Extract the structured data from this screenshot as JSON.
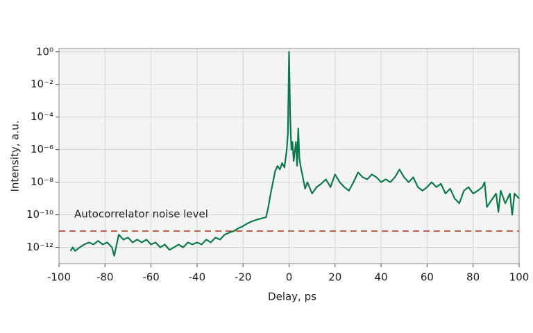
{
  "chart_data": {
    "type": "line",
    "xlabel": "Delay, ps",
    "ylabel": "Intensity, a.u.",
    "x": [
      -95,
      -94,
      -93,
      -91,
      -89,
      -87,
      -85,
      -83,
      -81,
      -79,
      -77,
      -76,
      -74,
      -72,
      -70,
      -68,
      -66,
      -64,
      -62,
      -60,
      -58,
      -56,
      -54,
      -52,
      -50,
      -48,
      -46,
      -44,
      -42,
      -40,
      -38,
      -36,
      -34,
      -32,
      -30,
      -28,
      -26,
      -24,
      -22,
      -20,
      -18,
      -16,
      -14,
      -12,
      -10,
      -9,
      -8,
      -7,
      -6,
      -5,
      -4,
      -3,
      -2,
      -1,
      -0.5,
      0,
      0.5,
      1,
      1.5,
      2,
      3,
      3.5,
      4,
      4.5,
      5,
      6,
      7,
      8,
      10,
      12,
      14,
      16,
      18,
      20,
      22,
      24,
      26,
      28,
      30,
      32,
      34,
      36,
      38,
      40,
      42,
      44,
      46,
      48,
      50,
      52,
      54,
      56,
      58,
      60,
      62,
      64,
      66,
      68,
      70,
      72,
      74,
      76,
      78,
      80,
      82,
      84,
      85,
      86,
      88,
      90,
      91,
      92,
      94,
      96,
      97,
      98,
      100
    ],
    "values": [
      6e-13,
      1e-12,
      6e-13,
      1e-12,
      1.5e-12,
      2e-12,
      1.5e-12,
      2.5e-12,
      1.5e-12,
      2e-12,
      1e-12,
      3e-13,
      6e-12,
      3e-12,
      4e-12,
      2e-12,
      3e-12,
      2e-12,
      3e-12,
      1.5e-12,
      2e-12,
      1e-12,
      1.5e-12,
      7e-13,
      1e-12,
      1.5e-12,
      1e-12,
      2e-12,
      1.5e-12,
      2e-12,
      1.5e-12,
      3e-12,
      2e-12,
      4e-12,
      3e-12,
      6e-12,
      8e-12,
      1e-11,
      1.5e-11,
      2e-11,
      3e-11,
      4e-11,
      5e-11,
      6e-11,
      7e-11,
      3e-10,
      2e-09,
      1e-08,
      5e-08,
      1e-07,
      6e-08,
      1.5e-07,
      8e-08,
      1e-06,
      1e-05,
      1,
      0.0001,
      1e-06,
      3e-06,
      2e-07,
      3e-06,
      1e-07,
      2e-05,
      3e-07,
      1e-07,
      2e-08,
      4e-09,
      1e-08,
      2e-09,
      5e-09,
      8e-09,
      1.5e-08,
      5e-09,
      3e-08,
      1e-08,
      5e-09,
      3e-09,
      1e-08,
      4e-08,
      2e-08,
      1.5e-08,
      3e-08,
      2e-08,
      1e-08,
      1.5e-08,
      1e-08,
      2e-08,
      6e-08,
      2e-08,
      1e-08,
      2e-08,
      5e-09,
      3e-09,
      5e-09,
      1e-08,
      5e-09,
      8e-09,
      2e-09,
      4e-09,
      1e-09,
      5e-10,
      3e-09,
      5e-09,
      2e-09,
      3e-09,
      5e-09,
      1e-08,
      3e-10,
      8e-10,
      2e-09,
      1.5e-10,
      3e-09,
      5e-10,
      2e-09,
      1e-10,
      2e-09,
      1e-09
    ],
    "color": "#0b7a4b",
    "xlim": [
      -100,
      100
    ],
    "xticks": [
      -100,
      -80,
      -60,
      -40,
      -20,
      0,
      20,
      40,
      60,
      80,
      100
    ],
    "yscale": "log",
    "ylim": [
      1e-13,
      1.6
    ],
    "yticks": [
      {
        "value": 1e-12,
        "label": "10⁻¹²"
      },
      {
        "value": 1e-10,
        "label": "10⁻¹⁰"
      },
      {
        "value": 1e-08,
        "label": "10⁻⁸"
      },
      {
        "value": 1e-06,
        "label": "10⁻⁶"
      },
      {
        "value": 0.0001,
        "label": "10⁻⁴"
      },
      {
        "value": 0.01,
        "label": "10⁻²"
      },
      {
        "value": 1,
        "label": "10⁰"
      }
    ],
    "grid": true,
    "reference_line": {
      "label": "Autocorrelator noise level",
      "value": 1e-11,
      "color": "#c0392b"
    }
  }
}
